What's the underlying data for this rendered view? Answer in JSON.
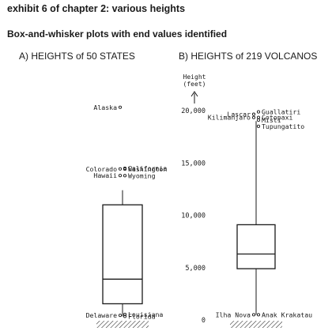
{
  "header": {
    "exhibit": "exhibit 6 of chapter 2: various heights",
    "subtitle": "Box-and-whisker plots with end values identified"
  },
  "chart_data": [
    {
      "type": "box",
      "title": "A)  HEIGHTS of 50 STATES",
      "ylim": [
        0,
        20000
      ],
      "box": {
        "min": 345,
        "q1": 1550,
        "median": 3900,
        "q3": 11000,
        "whisker_high": 12400
      },
      "labels": [
        {
          "text": "Alaska",
          "value": 20320,
          "side": "left"
        },
        {
          "text": "California",
          "value": 14494,
          "side": "right"
        },
        {
          "text": "Colorado",
          "value": 14431,
          "side": "left"
        },
        {
          "text": "Washington",
          "value": 14410,
          "side": "right"
        },
        {
          "text": "Hawaii",
          "value": 13796,
          "side": "left"
        },
        {
          "text": "Wyoming",
          "value": 13785,
          "side": "right"
        },
        {
          "text": "Louisiana",
          "value": 535,
          "side": "right"
        },
        {
          "text": "Delaware",
          "value": 442,
          "side": "left"
        },
        {
          "text": "Florida",
          "value": 345,
          "side": "right"
        }
      ]
    },
    {
      "type": "box",
      "title": "B)  HEIGHTS of 219 VOLCANOS",
      "ylabel": "Height\n(feet)",
      "ylim": [
        0,
        20000
      ],
      "yticks": [
        0,
        5000,
        10000,
        15000,
        20000
      ],
      "ytick_labels": [
        "0",
        "5,000",
        "10,000",
        "15,000",
        "20,000"
      ],
      "box": {
        "min": 500,
        "q1": 4900,
        "median": 6300,
        "q3": 9100,
        "whisker_high": 19000
      },
      "labels": [
        {
          "text": "Guallatiri",
          "value": 19882,
          "side": "right"
        },
        {
          "text": "Lascar",
          "value": 19652,
          "side": "left"
        },
        {
          "text": "Cotopaxi",
          "value": 19347,
          "side": "right"
        },
        {
          "text": "Kilimanjaro",
          "value": 19340,
          "side": "left"
        },
        {
          "text": "Misti",
          "value": 19098,
          "side": "right"
        },
        {
          "text": "Tupungatito",
          "value": 18504,
          "side": "right"
        },
        {
          "text": "Anak Krakatau",
          "value": 500,
          "side": "right"
        },
        {
          "text": "Ilha Nova",
          "value": 500,
          "side": "left"
        }
      ]
    }
  ]
}
